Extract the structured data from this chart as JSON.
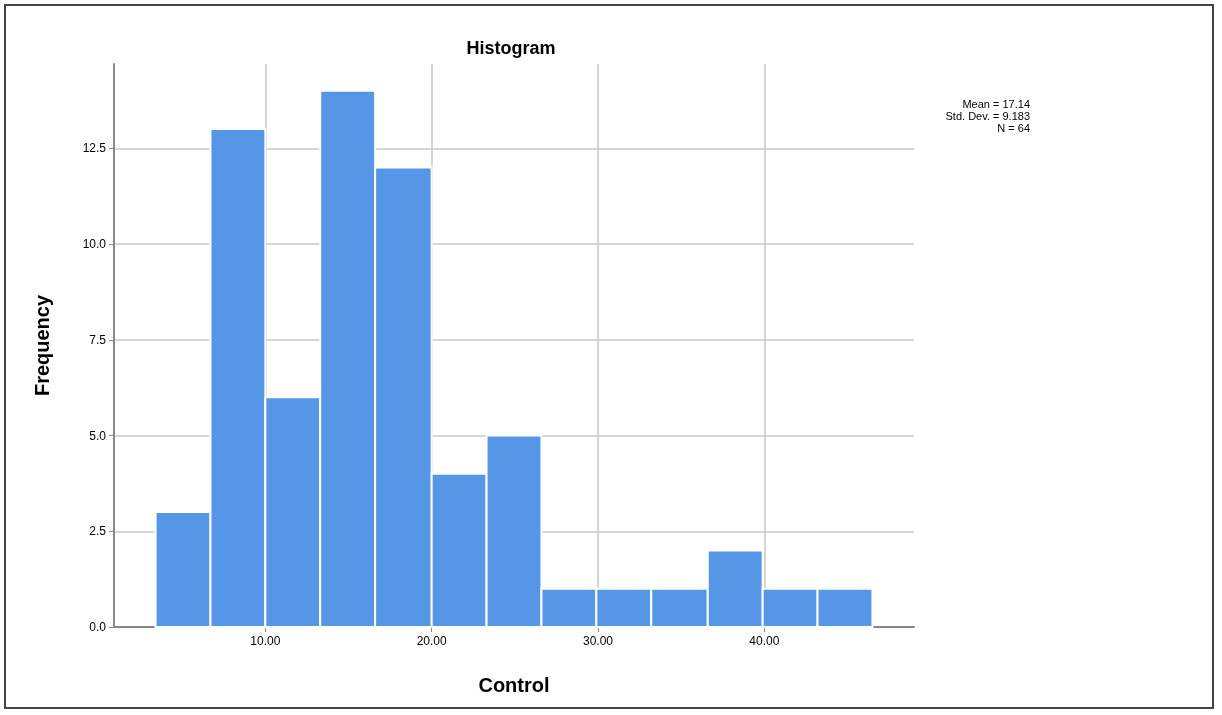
{
  "chart_data": {
    "type": "histogram",
    "title": "Histogram",
    "xlabel": "Control",
    "ylabel": "Frequency",
    "bins": [
      3.4,
      6.7,
      10.0,
      13.3,
      16.6,
      20.0,
      23.3,
      26.6,
      29.9,
      33.2,
      36.6,
      39.9,
      43.2,
      46.5
    ],
    "values": [
      3,
      13,
      6,
      14,
      12,
      4,
      5,
      1,
      1,
      1,
      2,
      1,
      1
    ],
    "color": "#5596e6",
    "xlim": [
      0.9,
      49
    ],
    "xticks": [
      {
        "value": 10,
        "label": "10.00"
      },
      {
        "value": 20,
        "label": "20.00"
      },
      {
        "value": 30,
        "label": "30.00"
      },
      {
        "value": 40,
        "label": "40.00"
      }
    ],
    "ylim": [
      0,
      14.7
    ],
    "yticks": [
      {
        "value": 0,
        "label": "0.0"
      },
      {
        "value": 2.5,
        "label": "2.5"
      },
      {
        "value": 5,
        "label": "5.0"
      },
      {
        "value": 7.5,
        "label": "7.5"
      },
      {
        "value": 10,
        "label": "10.0"
      },
      {
        "value": 12.5,
        "label": "12.5"
      }
    ],
    "grid": true,
    "annotations": [
      "Mean = 17.14",
      "Std. Dev. = 9.183",
      "N = 64"
    ]
  }
}
